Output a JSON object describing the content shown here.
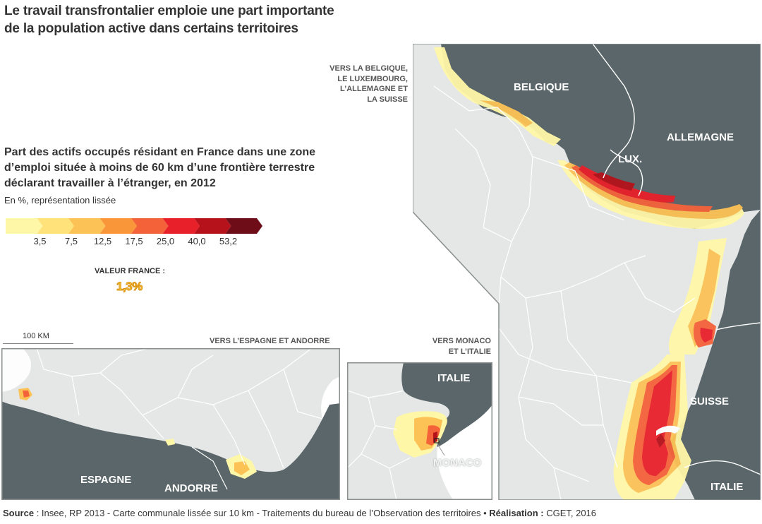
{
  "title": {
    "line1": "Le travail transfrontalier emploie une part importante",
    "line2": "de la population active dans certains territoires"
  },
  "legend": {
    "title_line1": "Part des actifs occupés résidant en France dans une zone",
    "title_line2": "d’emploi située à moins de 60 km d’une frontière terrestre",
    "title_line3": "déclarant travailler à l’étranger, en 2012",
    "unit": "En %, représentation lissée",
    "breaks": [
      "3,5",
      "7,5",
      "12,5",
      "17,5",
      "25,0",
      "40,0",
      "53,2"
    ],
    "colors": [
      "#fff7a8",
      "#ffe27a",
      "#fdc256",
      "#f9963a",
      "#f4623a",
      "#e8202a",
      "#b5121b",
      "#6e0d18"
    ]
  },
  "france_value": {
    "label": "VALEUR FRANCE :",
    "value": "1,3%"
  },
  "scale": {
    "label": "100 KM"
  },
  "callouts": {
    "north": [
      "VERS LA BELGIQUE,",
      "LE LUXEMBOURG,",
      "L’ALLEMAGNE ET",
      "LA SUISSE"
    ],
    "spain": "VERS L’ESPAGNE ET ANDORRE",
    "monaco": [
      "VERS MONACO",
      "ET L’ITALIE"
    ]
  },
  "countries": {
    "belgique": "BELGIQUE",
    "allemagne": "ALLEMAGNE",
    "lux": "LUX.",
    "suisse": "SUISSE",
    "italie_main": "ITALIE",
    "italie_inset": "ITALIE",
    "monaco": "MONACO",
    "espagne": "ESPAGNE",
    "andorre": "ANDORRE"
  },
  "colors": {
    "neighbor": "#5a6669",
    "france": "#e5e7e7",
    "borders": "#ffffff",
    "panel_border": "#8a8f90"
  },
  "source": {
    "source_label": "Source",
    "source_text": " : Insee, RP 2013  - Carte communale lissée sur 10 km - Traitements du bureau de l’Observation des territoires • ",
    "realisation_label": "Réalisation :",
    "realisation_text": " CGET, 2016"
  }
}
